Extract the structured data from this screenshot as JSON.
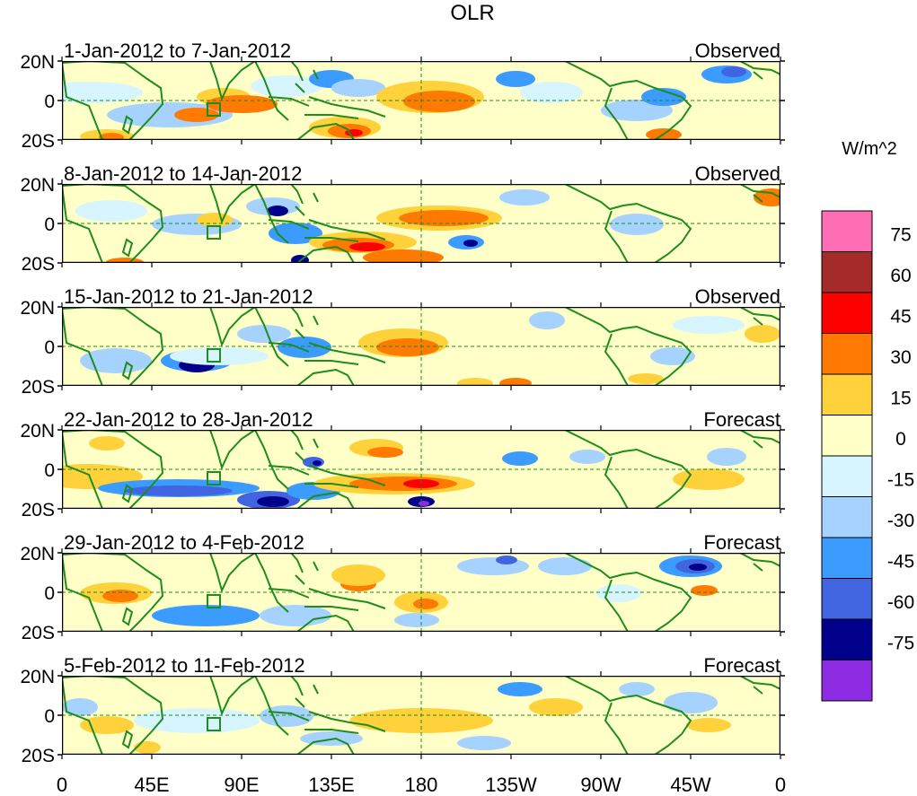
{
  "figure": {
    "title": "OLR",
    "units": "W/m^2"
  },
  "y_tick_labels": [
    "20N",
    "0",
    "20S"
  ],
  "x_tick_labels": [
    "0",
    "45E",
    "90E",
    "135E",
    "180",
    "135W",
    "90W",
    "45W",
    "0"
  ],
  "panels": [
    {
      "date_range": "1-Jan-2012 to 7-Jan-2012",
      "kind": "Observed"
    },
    {
      "date_range": "8-Jan-2012 to 14-Jan-2012",
      "kind": "Observed"
    },
    {
      "date_range": "15-Jan-2012 to 21-Jan-2012",
      "kind": "Observed"
    },
    {
      "date_range": "22-Jan-2012 to 28-Jan-2012",
      "kind": "Forecast"
    },
    {
      "date_range": "29-Jan-2012 to 4-Feb-2012",
      "kind": "Forecast"
    },
    {
      "date_range": "5-Feb-2012 to 11-Feb-2012",
      "kind": "Forecast"
    }
  ],
  "colorbar": {
    "labels": [
      "75",
      "60",
      "45",
      "30",
      "15",
      "0",
      "-15",
      "-30",
      "-45",
      "-60",
      "-75"
    ],
    "colors": [
      "#ff6eb4",
      "#a52a2a",
      "#ff0000",
      "#ff7a00",
      "#ffd23c",
      "#ffffc8",
      "#d7f5ff",
      "#a5d2ff",
      "#3c9bff",
      "#4164e1",
      "#00008b",
      "#8c2be2"
    ]
  },
  "colors": {
    "land_outline": "#1e8c1e",
    "reference_lines": "#1e8c1e",
    "map_background": "#ffffc8"
  }
}
